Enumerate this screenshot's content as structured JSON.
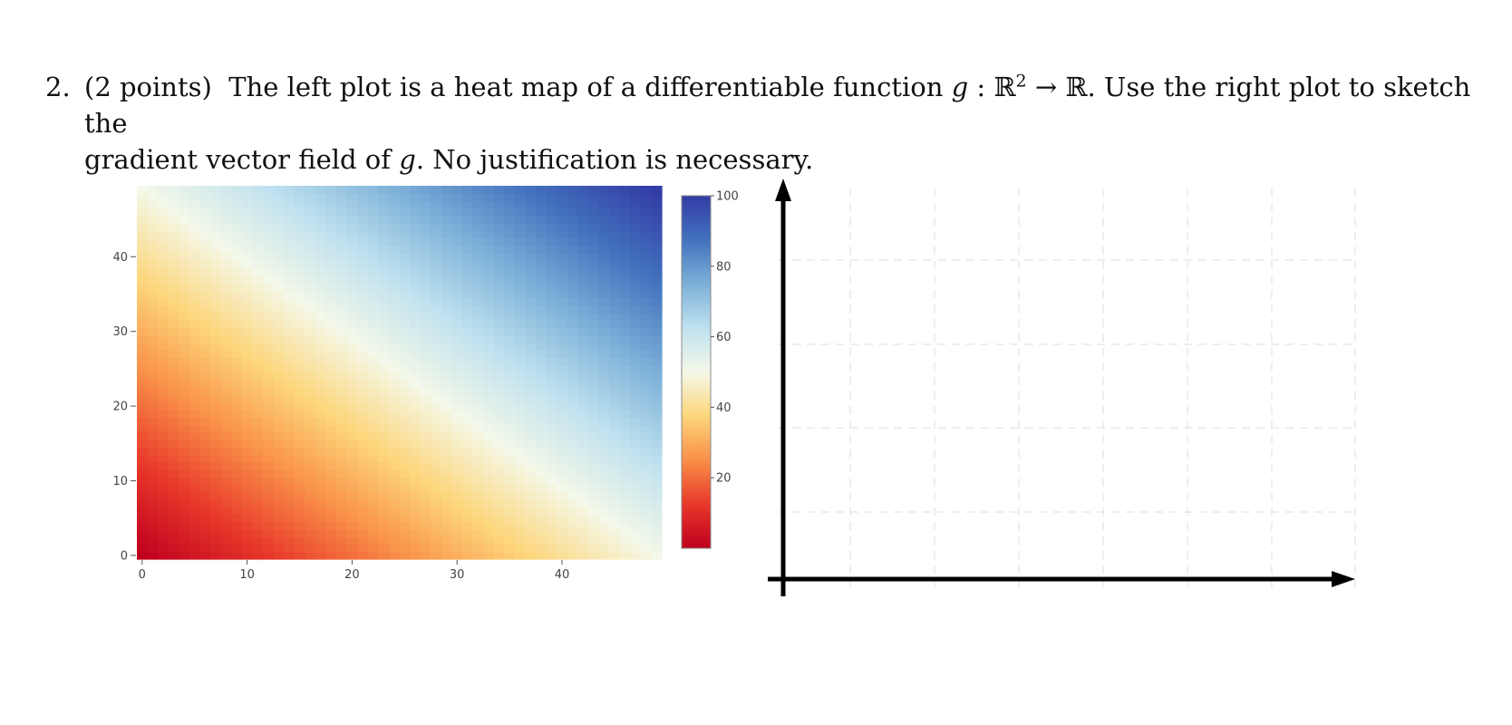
{
  "problem": {
    "number": "2.",
    "points": "(2 points)",
    "line1_a": "The left plot is a heat map of a differentiable function",
    "func_name": "g",
    "colon": " : ",
    "domain_set": "ℝ",
    "domain_exp": "2",
    "arrow": " → ",
    "codomain_set": "ℝ",
    "line1_b": ". Use the right plot to sketch the",
    "line2_a": "gradient vector field of",
    "func_name2": "g",
    "line2_b": ". No justification is necessary."
  },
  "chart_data": [
    {
      "type": "heatmap",
      "function": "x + y",
      "x": {
        "min": 0,
        "max": 49,
        "ticks": [
          0,
          10,
          20,
          30,
          40
        ],
        "tick_labels": [
          "0",
          "10",
          "20",
          "30",
          "40"
        ]
      },
      "y": {
        "min": 0,
        "max": 49,
        "ticks": [
          0,
          10,
          20,
          30,
          40
        ],
        "tick_labels": [
          "0",
          "10",
          "20",
          "30",
          "40"
        ]
      },
      "grid_size": 50,
      "colorscale": [
        "#c0001f",
        "#e8382a",
        "#f98f48",
        "#fdd67b",
        "#f4f8e8",
        "#bfe1ef",
        "#7cb0d8",
        "#4272be",
        "#333ba5"
      ],
      "colorbar": {
        "min": 0,
        "max": 100,
        "ticks": [
          20,
          40,
          60,
          80,
          100
        ],
        "tick_labels": [
          "20",
          "40",
          "60",
          "80",
          "100"
        ],
        "placement": "right"
      }
    },
    {
      "type": "blank_axes",
      "grid": true,
      "grid_color": "#dddddd",
      "axis_color": "#000000"
    }
  ]
}
